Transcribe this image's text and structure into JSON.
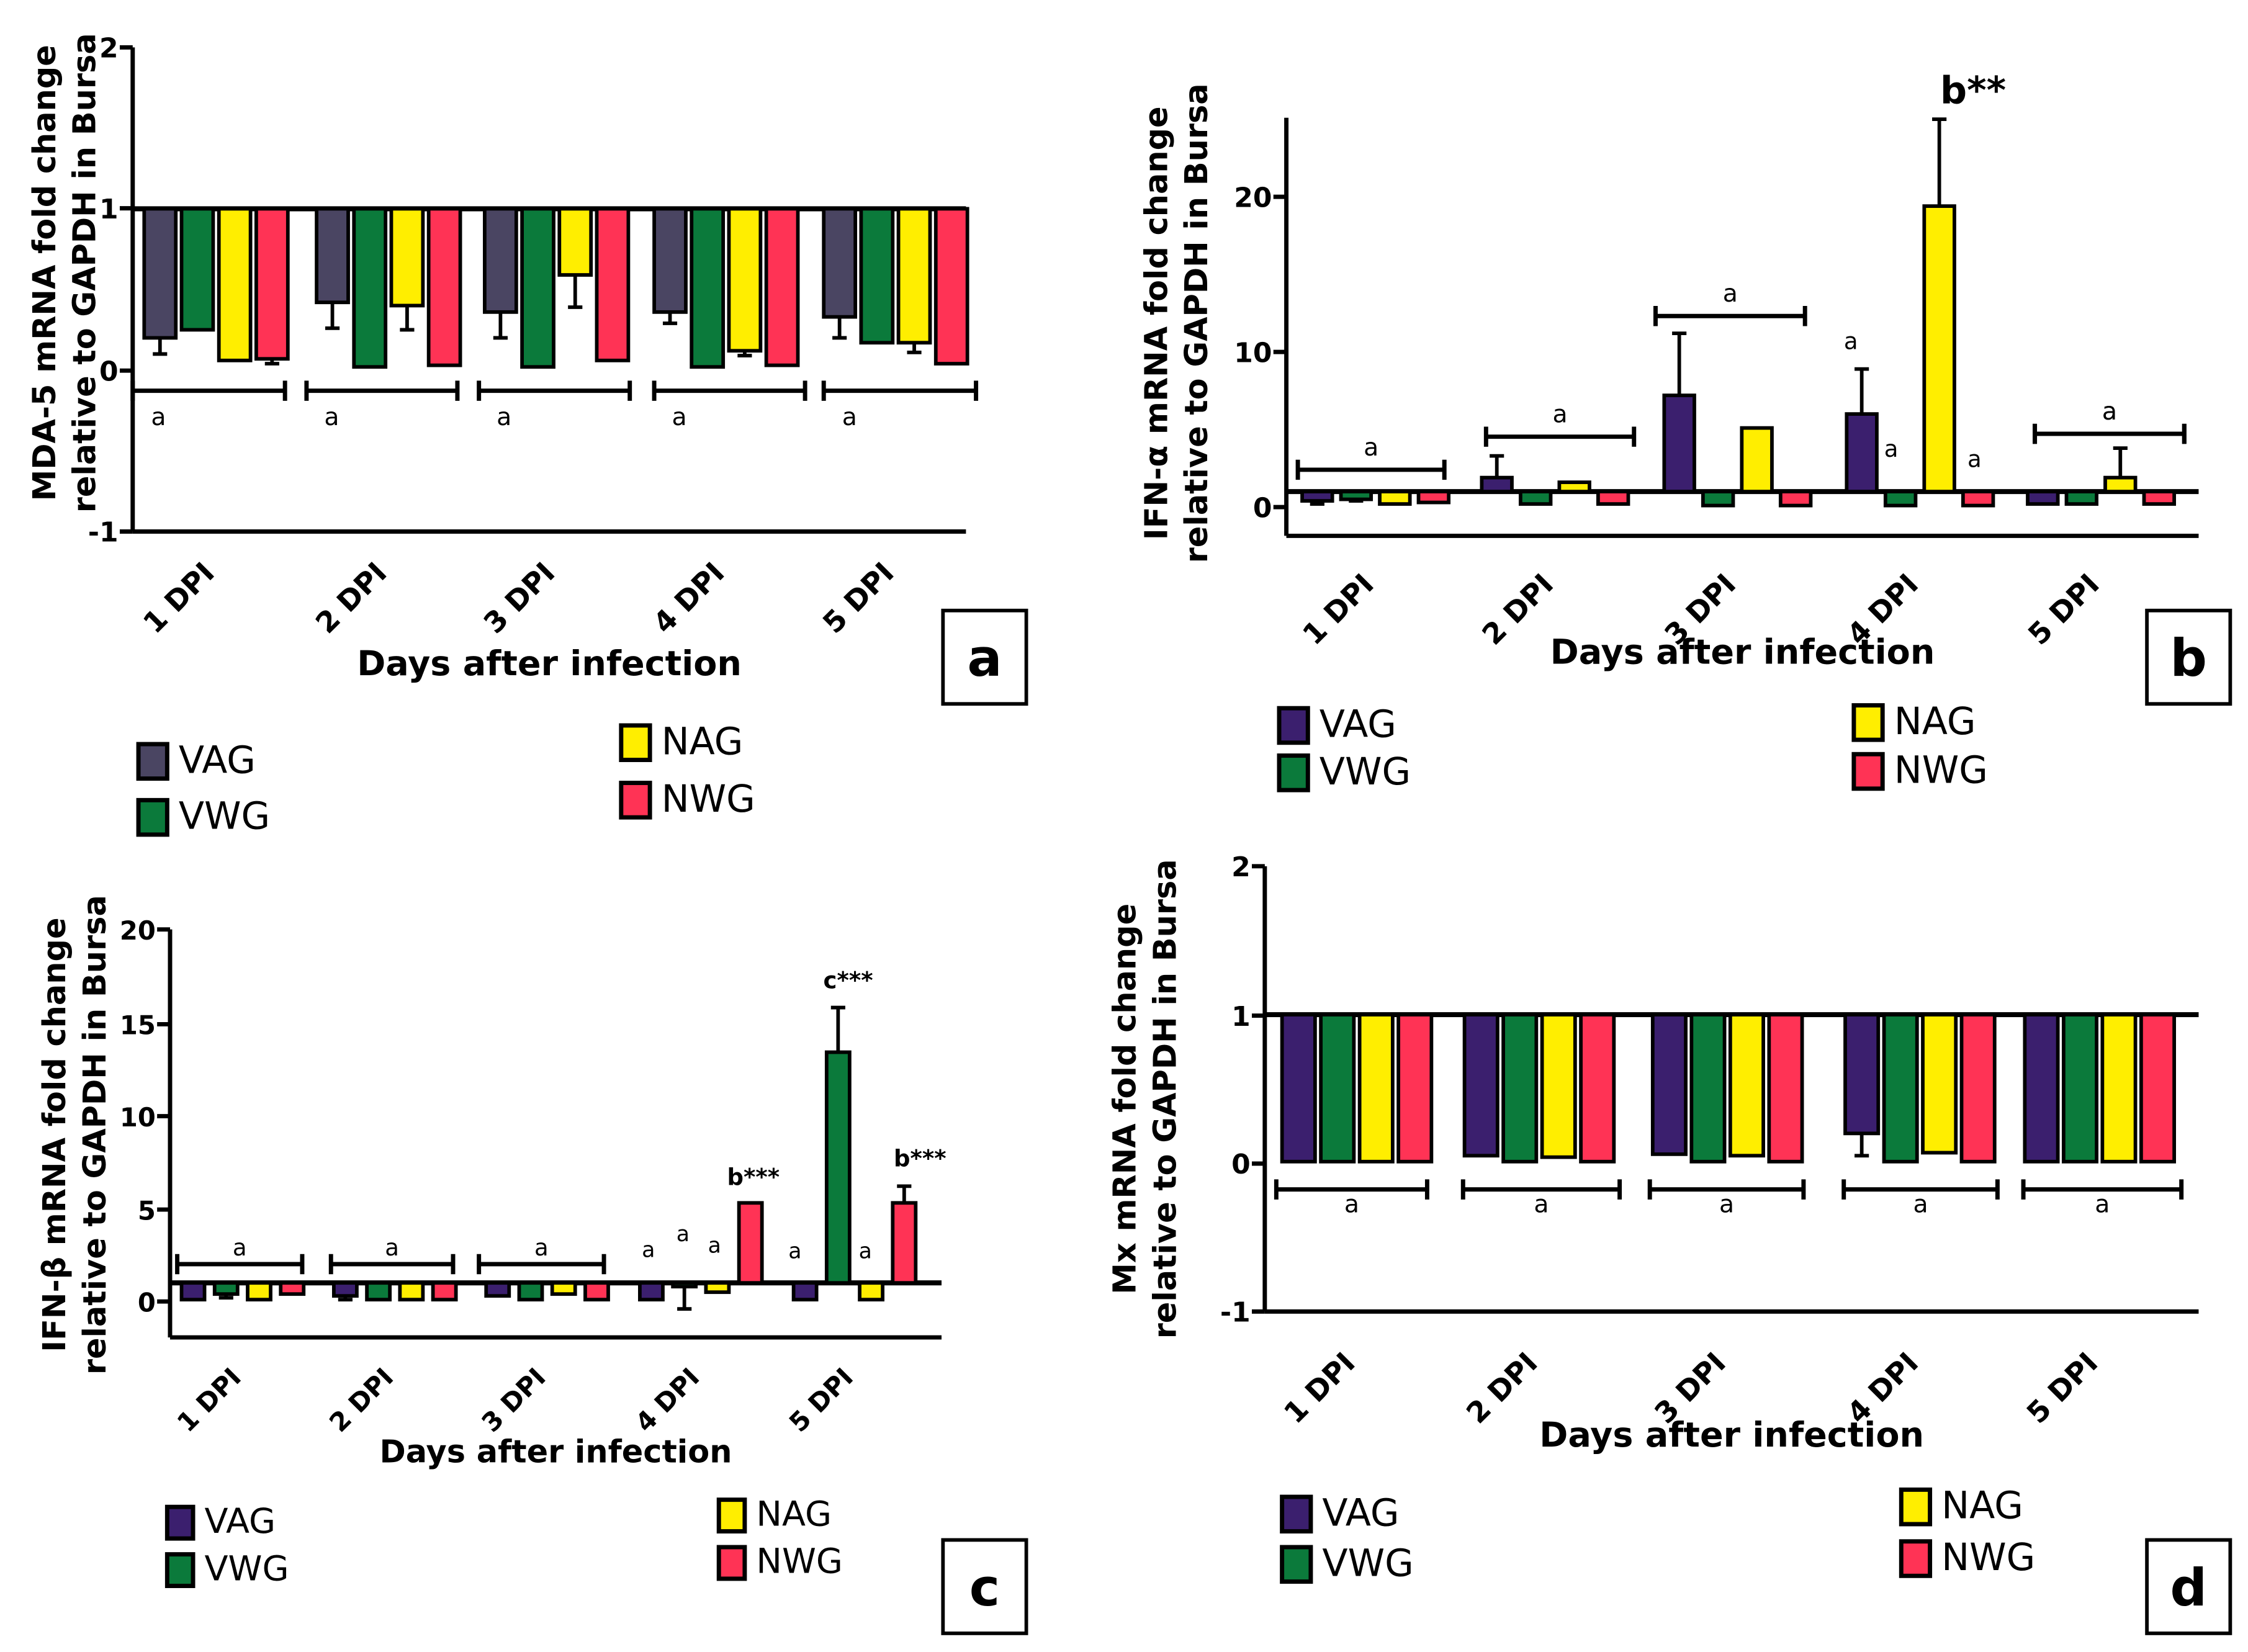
{
  "series": [
    {
      "name": "VAG",
      "color_a": "#4a4562",
      "color": "#3b1f6e"
    },
    {
      "name": "VWG",
      "color": "#0b7a3b"
    },
    {
      "name": "NAG",
      "color": "#ffee00"
    },
    {
      "name": "NWG",
      "color": "#ff3355"
    }
  ],
  "chart_data": [
    {
      "panel": "a",
      "type": "bar",
      "baseline": 1,
      "ylabel": [
        "MDA-5 mRNA fold change",
        "relative to GAPDH in Bursa"
      ],
      "xlabel": "Days after infection",
      "categories": [
        "1 DPI",
        "2 DPI",
        "3 DPI",
        "4 DPI",
        "5 DPI"
      ],
      "ylim": [
        -1,
        2
      ],
      "yticks": [
        "2",
        "1",
        "0",
        "-1"
      ],
      "series": [
        {
          "name": "VAG",
          "values": [
            0.2,
            0.42,
            0.36,
            0.36,
            0.33
          ],
          "errors": [
            0.1,
            0.16,
            0.16,
            0.07,
            0.13
          ]
        },
        {
          "name": "VWG",
          "values": [
            0.25,
            0.02,
            0.02,
            0.02,
            0.17
          ],
          "errors": [
            0,
            0,
            0,
            0,
            0
          ]
        },
        {
          "name": "NAG",
          "values": [
            0.06,
            0.4,
            0.59,
            0.12,
            0.17
          ],
          "errors": [
            0,
            0.15,
            0.2,
            0.03,
            0.06
          ]
        },
        {
          "name": "NWG",
          "values": [
            0.07,
            0.03,
            0.06,
            0.03,
            0.04
          ],
          "errors": [
            0.03,
            0,
            0,
            0,
            0
          ]
        }
      ],
      "groups": [
        {
          "label": "a"
        },
        {
          "label": "a"
        },
        {
          "label": "a"
        },
        {
          "label": "a"
        },
        {
          "label": "a"
        }
      ],
      "annotations": [],
      "panel_label": "a"
    },
    {
      "panel": "b",
      "type": "bar",
      "baseline": 1,
      "ylabel": [
        "IFN-α mRNA fold change",
        "relative to GAPDH in Bursa"
      ],
      "xlabel": "Days after infection",
      "categories": [
        "1 DPI",
        "2 DPI",
        "3 DPI",
        "4 DPI",
        "5 DPI"
      ],
      "ylim": [
        -2,
        25
      ],
      "yticks": [
        "20",
        "10",
        "0"
      ],
      "series": [
        {
          "name": "VAG",
          "values": [
            0.4,
            1.9,
            7.2,
            6.0,
            0.2
          ],
          "errors": [
            0.2,
            1.4,
            4.0,
            2.9,
            0
          ]
        },
        {
          "name": "VWG",
          "values": [
            0.5,
            0.2,
            0.1,
            0.1,
            0.2
          ],
          "errors": [
            0.1,
            0,
            0,
            0,
            0
          ]
        },
        {
          "name": "NAG",
          "values": [
            0.2,
            1.6,
            5.1,
            19.4,
            1.9
          ],
          "errors": [
            0,
            0,
            0,
            5.6,
            1.9
          ]
        },
        {
          "name": "NWG",
          "values": [
            0.3,
            0.2,
            0.1,
            0.1,
            0.2
          ],
          "errors": [
            0,
            0,
            0,
            0,
            0
          ]
        }
      ],
      "groups": [
        {
          "label": "a"
        },
        {
          "label": "a"
        },
        {
          "label": "a"
        },
        {
          "label": "a"
        },
        {
          "label": "a"
        }
      ],
      "annotations": [
        {
          "text": "b**"
        },
        {
          "text": "a"
        },
        {
          "text": "a"
        }
      ],
      "panel_label": "b"
    },
    {
      "panel": "c",
      "type": "bar",
      "baseline": 1,
      "ylabel": [
        "IFN-β mRNA fold change",
        "relative to GAPDH in Bursa"
      ],
      "xlabel": "Days after infection",
      "categories": [
        "1 DPI",
        "2 DPI",
        "3 DPI",
        "4 DPI",
        "5 DPI"
      ],
      "ylim": [
        -2,
        20
      ],
      "yticks": [
        "20",
        "15",
        "10",
        "5",
        "0"
      ],
      "series": [
        {
          "name": "VAG",
          "values": [
            0.1,
            0.3,
            0.3,
            0.1,
            0.1
          ],
          "errors": [
            0,
            0.2,
            0,
            0,
            0
          ]
        },
        {
          "name": "VWG",
          "values": [
            0.4,
            0.1,
            0.1,
            0.8,
            13.4
          ],
          "errors": [
            0.2,
            0,
            0,
            1.2,
            2.4
          ]
        },
        {
          "name": "NAG",
          "values": [
            0.1,
            0.1,
            0.4,
            0.5,
            0.1
          ],
          "errors": [
            0,
            0,
            0,
            0,
            0
          ]
        },
        {
          "name": "NWG",
          "values": [
            0.4,
            0.1,
            0.1,
            5.3,
            5.3
          ],
          "errors": [
            0,
            0,
            0,
            0,
            0.9
          ]
        }
      ],
      "groups": [
        {
          "label": "a"
        },
        {
          "label": "a"
        },
        {
          "label": "a"
        }
      ],
      "annotations": [
        {
          "text": "a"
        },
        {
          "text": "a"
        },
        {
          "text": "a"
        },
        {
          "text": "b***"
        },
        {
          "text": "a"
        },
        {
          "text": "c***"
        },
        {
          "text": "a"
        },
        {
          "text": "b***"
        }
      ],
      "panel_label": "c"
    },
    {
      "panel": "d",
      "type": "bar",
      "baseline": 1,
      "ylabel": [
        "Mx mRNA fold change",
        "relative to GAPDH in Bursa"
      ],
      "xlabel": "Days after infection",
      "categories": [
        "1 DPI",
        "2 DPI",
        "3 DPI",
        "4 DPI",
        "5 DPI"
      ],
      "ylim": [
        -1,
        2
      ],
      "yticks": [
        "2",
        "1",
        "0",
        "-1"
      ],
      "series": [
        {
          "name": "VAG",
          "values": [
            0.01,
            0.05,
            0.06,
            0.2,
            0.01
          ],
          "errors": [
            0,
            0,
            0,
            0.15,
            0
          ]
        },
        {
          "name": "VWG",
          "values": [
            0.01,
            0.01,
            0.01,
            0.01,
            0.01
          ],
          "errors": [
            0,
            0,
            0,
            0,
            0
          ]
        },
        {
          "name": "NAG",
          "values": [
            0.01,
            0.04,
            0.05,
            0.07,
            0.01
          ],
          "errors": [
            0,
            0,
            0,
            0,
            0
          ]
        },
        {
          "name": "NWG",
          "values": [
            0.01,
            0.01,
            0.01,
            0.01,
            0.01
          ],
          "errors": [
            0,
            0,
            0,
            0,
            0
          ]
        }
      ],
      "groups": [
        {
          "label": "a"
        },
        {
          "label": "a"
        },
        {
          "label": "a"
        },
        {
          "label": "a"
        },
        {
          "label": "a"
        }
      ],
      "annotations": [],
      "panel_label": "d"
    }
  ]
}
